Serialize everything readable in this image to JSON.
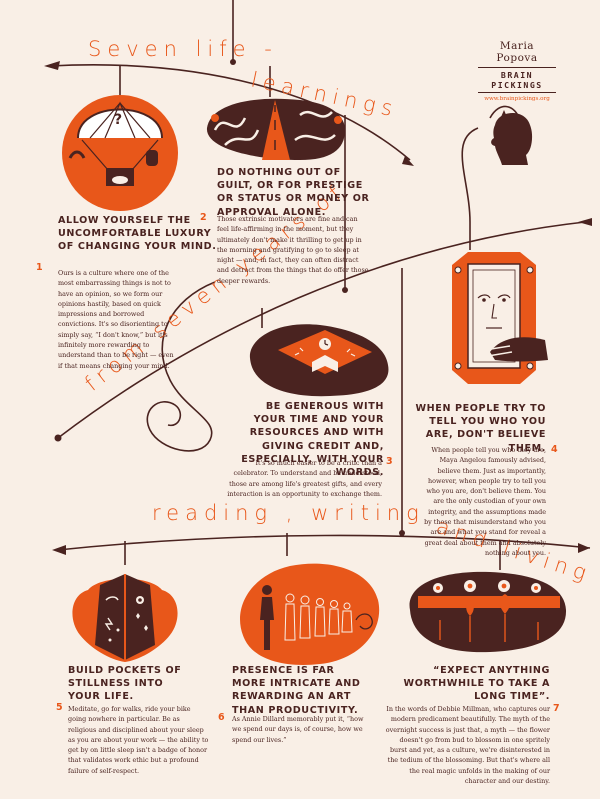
{
  "colors": {
    "background": "#f9efe6",
    "brown": "#4a2320",
    "orange": "#e8571a"
  },
  "title": {
    "line1": "Seven life -",
    "line2": "learnings",
    "line3": "from seven years of",
    "line4": "reading , writing",
    "line5": "and living"
  },
  "credit": {
    "author": "Maria Popova",
    "brand": "BRAIN PICKINGS",
    "url": "www.brainpickings.org"
  },
  "learnings": [
    {
      "number": "1",
      "heading": "Allow yourself the uncomfortable luxury of changing your mind.",
      "body": "Ours is a culture where one of the most embarrassing things is not to have an opinion, so we form our opinions hastily, based on quick impressions and borrowed convictions. It's so disorienting to simply say, “I don't know,” but it's infinitely more rewarding to understand than to be right — even if that means changing your mind.",
      "icon": "hot-air-balloon-icon"
    },
    {
      "number": "2",
      "heading": "Do nothing out of guilt, or for prestige or status or money or approval alone.",
      "body": "Those extrinsic motivators are fine and can feel life-affirming in the moment, but they ultimately don't make it thrilling to get up in the morning and gratifying to go to sleep at night — and, in fact, they can often distract and detract from the things that do offer those deeper rewards.",
      "icon": "winding-roads-icon"
    },
    {
      "number": "3",
      "heading": "Be generous with your time and your resources and with giving credit and, especially, with your words.",
      "body": "It's so much easier to be a critic than a celebrator. To understand and be understood, those are among life's greatest gifts, and every interaction is an opportunity to exchange them.",
      "icon": "open-book-icon"
    },
    {
      "number": "4",
      "heading": "When people try to tell you who you are, don't believe them.",
      "body": "When people tell you who they are, Maya Angelou famously advised, believe them. Just as importantly, however, when people try to tell you who you are, don't believe them. You are the only custodian of your own integrity, and the assumptions made by those that misunderstand who you are and what you stand for reveal a great deal about them and absolutely nothing about you.",
      "icon": "mirror-portrait-icon"
    },
    {
      "number": "5",
      "heading": "Build pockets of stillness into your life.",
      "body": "Meditate, go for walks, ride your bike going nowhere in particular. Be as religious and disciplined about your sleep as you are about your work — the ability to get by on little sleep isn't a badge of honor that validates work ethic but a profound failure of self-respect.",
      "icon": "sleeping-faces-icon"
    },
    {
      "number": "6",
      "heading": "Presence is far more intricate and rewarding an art than productivity.",
      "body": "As Annie Dillard memorably put it, “how we spend our days is, of course, how we spend our lives.”",
      "icon": "crowd-silhouettes-icon"
    },
    {
      "number": "7",
      "heading": "“Expect anything worthwhile to take a long time”.",
      "body": "In the words of Debbie Millman, who captures our modern predicament beautifully. The myth of the overnight success is just that, a myth — the flower doesn't go from bud to blossom in one spritely burst and yet, as a culture, we're disinterested in the tedium of the blossoming. But that's where all the real magic unfolds in the making of our character and our destiny.",
      "icon": "blooming-flowers-icon"
    }
  ]
}
